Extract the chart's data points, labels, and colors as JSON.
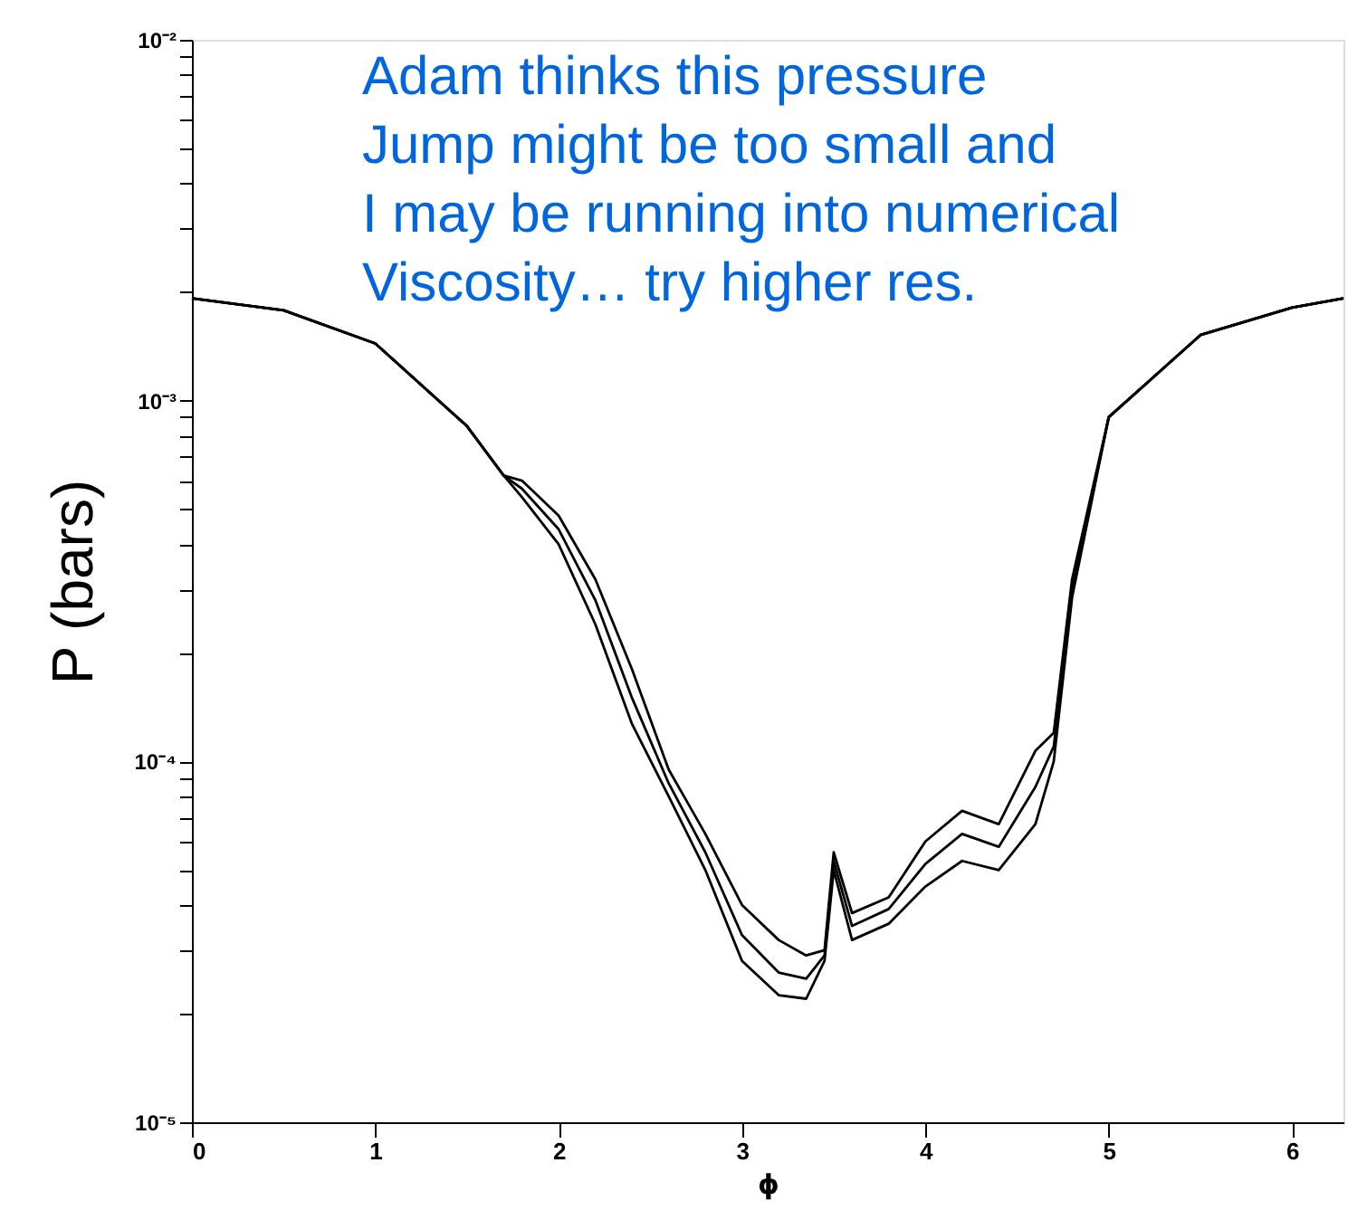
{
  "chart_data": {
    "type": "line",
    "xlabel": "ϕ",
    "ylabel": "P (bars)",
    "log": "y",
    "annotations": [
      "Adam thinks this pressure",
      "Jump might be too small and",
      "I may be running into numerical",
      "Viscosity… try higher res."
    ],
    "xlim": [
      0,
      6.28
    ],
    "xticks": [
      0,
      1,
      2,
      3,
      4,
      5,
      6
    ],
    "ylim": [
      1e-05,
      0.01
    ],
    "yticks": [
      {
        "value": 1e-05,
        "label": "10⁻⁵"
      },
      {
        "value": 2e-05,
        "label": null
      },
      {
        "value": 3e-05,
        "label": null
      },
      {
        "value": 4e-05,
        "label": null
      },
      {
        "value": 5e-05,
        "label": null
      },
      {
        "value": 6e-05,
        "label": null
      },
      {
        "value": 7e-05,
        "label": null
      },
      {
        "value": 8e-05,
        "label": null
      },
      {
        "value": 9e-05,
        "label": null
      },
      {
        "value": 0.0001,
        "label": "10⁻⁴"
      },
      {
        "value": 0.0002,
        "label": null
      },
      {
        "value": 0.0003,
        "label": null
      },
      {
        "value": 0.0004,
        "label": null
      },
      {
        "value": 0.0005,
        "label": null
      },
      {
        "value": 0.0006,
        "label": null
      },
      {
        "value": 0.0007,
        "label": null
      },
      {
        "value": 0.0008,
        "label": null
      },
      {
        "value": 0.0009,
        "label": null
      },
      {
        "value": 0.001,
        "label": "10⁻³"
      },
      {
        "value": 0.002,
        "label": null
      },
      {
        "value": 0.003,
        "label": null
      },
      {
        "value": 0.004,
        "label": null
      },
      {
        "value": 0.005,
        "label": null
      },
      {
        "value": 0.006,
        "label": null
      },
      {
        "value": 0.007,
        "label": null
      },
      {
        "value": 0.008,
        "label": null
      },
      {
        "value": 0.009,
        "label": null
      },
      {
        "value": 0.01,
        "label": "10⁻²"
      }
    ],
    "grid": false,
    "legend": false,
    "marker": "none",
    "line_style": "solid",
    "x": [
      0,
      0.5,
      1,
      1.5,
      1.7,
      1.8,
      2.0,
      2.2,
      2.4,
      2.6,
      2.8,
      3.0,
      3.2,
      3.35,
      3.45,
      3.5,
      3.6,
      3.8,
      4.0,
      4.2,
      4.4,
      4.6,
      4.7,
      4.8,
      5.0,
      5.5,
      6.0,
      6.28
    ],
    "series": [
      {
        "color": "#000000",
        "values": [
          0.00192,
          0.00178,
          0.00144,
          0.00085,
          0.00062,
          0.0006,
          0.00048,
          0.00032,
          0.00018,
          9.5e-05,
          6.3e-05,
          4e-05,
          3.2e-05,
          2.9e-05,
          3e-05,
          5.6e-05,
          3.8e-05,
          4.2e-05,
          6e-05,
          7.3e-05,
          6.7e-05,
          0.000107,
          0.00012,
          0.00032,
          0.0009,
          0.00152,
          0.00181,
          0.00192
        ]
      },
      {
        "color": "#000000",
        "values": [
          0.00192,
          0.00178,
          0.00144,
          0.00085,
          0.00062,
          0.00057,
          0.00044,
          0.00028,
          0.00015,
          8.7e-05,
          5.6e-05,
          3.3e-05,
          2.6e-05,
          2.5e-05,
          2.9e-05,
          5.3e-05,
          3.5e-05,
          3.9e-05,
          5.2e-05,
          6.3e-05,
          5.8e-05,
          8.5e-05,
          0.00011,
          0.0003,
          0.0009,
          0.00152,
          0.00181,
          0.00192
        ]
      },
      {
        "color": "#000000",
        "values": [
          0.00192,
          0.00178,
          0.00144,
          0.00085,
          0.00062,
          0.00054,
          0.0004,
          0.00024,
          0.000127,
          8e-05,
          5e-05,
          2.8e-05,
          2.25e-05,
          2.2e-05,
          2.8e-05,
          5e-05,
          3.2e-05,
          3.55e-05,
          4.5e-05,
          5.3e-05,
          5e-05,
          6.7e-05,
          0.0001,
          0.000285,
          0.0009,
          0.00152,
          0.00181,
          0.00192
        ]
      }
    ]
  }
}
